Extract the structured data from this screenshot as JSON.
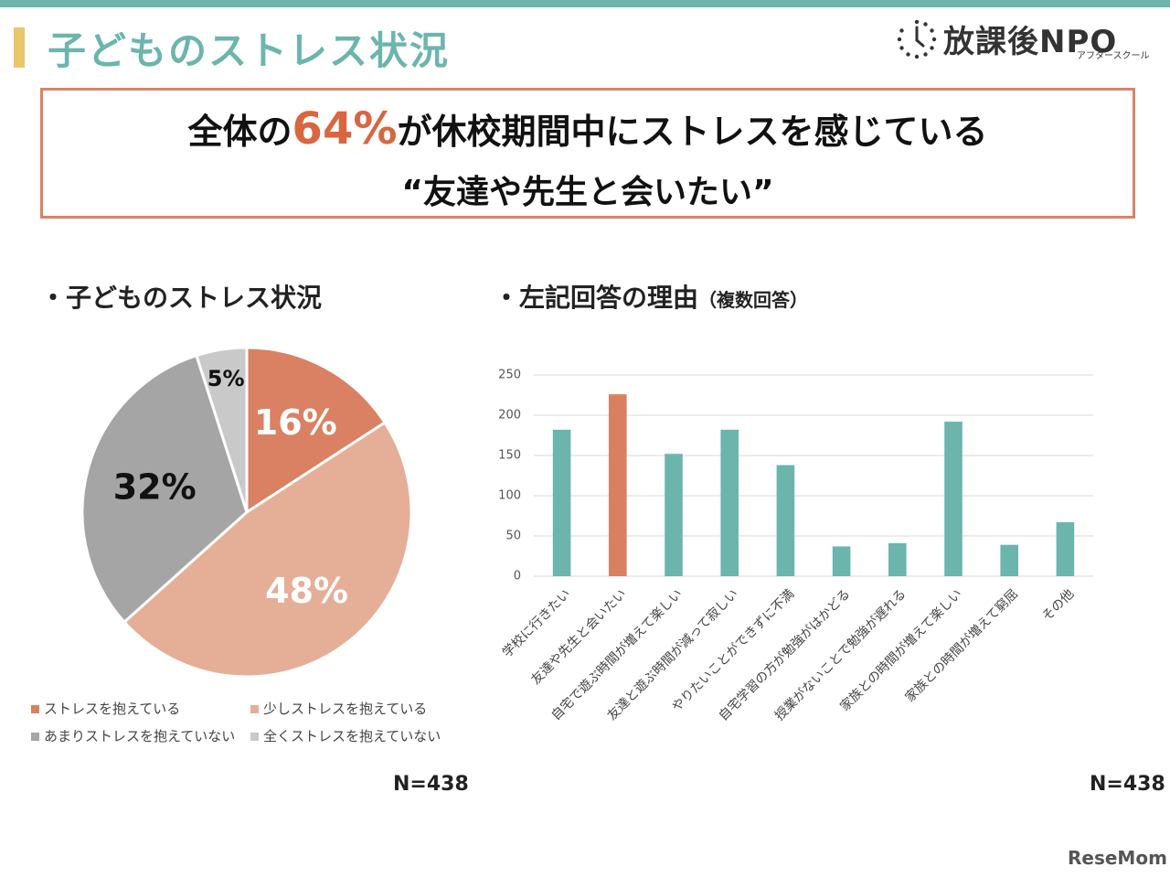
{
  "header": {
    "title": "子どものストレス状況",
    "logo_text": "放課後NPO",
    "logo_sub": "アフタースクール"
  },
  "highlight": {
    "line1_before": "全体の",
    "line1_pct": "64%",
    "line1_after": "が休校期間中にストレスを感じている",
    "line2": "“友達や先生と会いたい”"
  },
  "colors": {
    "accent": "#6bb5ad",
    "highlight": "#d8663f",
    "title_bar": "#e8c66a"
  },
  "chart_data": [
    {
      "type": "pie",
      "title": "・子どものストレス状況",
      "slices": [
        {
          "label": "ストレスを抱えている",
          "value": 16,
          "display": "16%",
          "color": "#d98162"
        },
        {
          "label": "少しストレスを抱えている",
          "value": 48,
          "display": "48%",
          "color": "#e5ae97"
        },
        {
          "label": "あまりストレスを抱えていない",
          "value": 32,
          "display": "32%",
          "color": "#a5a5a5"
        },
        {
          "label": "全くストレスを抱えていない",
          "value": 5,
          "display": "5%",
          "color": "#c9c9c9"
        }
      ],
      "note": "N=438"
    },
    {
      "type": "bar",
      "title": "・左記回答の理由",
      "subtitle": "（複数回答）",
      "categories": [
        "学校に行きたい",
        "友達や先生と会いたい",
        "自宅で遊ぶ時間が増えて楽しい",
        "友達と遊ぶ時間が減って寂しい",
        "やりたいことができずに不満",
        "自宅学習の方が勉強がはかどる",
        "授業がないことで勉強が遅れる",
        "家族との時間が増えて楽しい",
        "家族との時間が増えて窮屈",
        "その他"
      ],
      "values": [
        182,
        226,
        152,
        182,
        138,
        37,
        41,
        192,
        39,
        67
      ],
      "highlight_index": 1,
      "bar_color": "#6bb5ad",
      "highlight_color": "#d8805f",
      "ylim": [
        0,
        250
      ],
      "yticks": [
        0,
        50,
        100,
        150,
        200,
        250
      ],
      "grid": true,
      "note": "N=438"
    }
  ],
  "watermark": "ReseMom"
}
